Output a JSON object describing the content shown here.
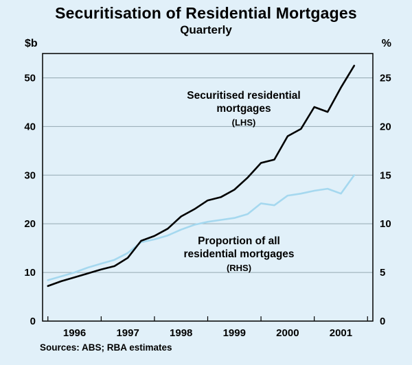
{
  "chart_data": {
    "type": "line",
    "title": "Securitisation of Residential Mortgages",
    "subtitle": "Quarterly",
    "ylabel_left": "$b",
    "ylabel_right": "%",
    "xlim": [
      1995.4,
      2001.6
    ],
    "ylim_left": [
      0,
      55
    ],
    "ylim_right": [
      0,
      27.5
    ],
    "yticks_left": [
      "0",
      "10",
      "20",
      "30",
      "40",
      "50"
    ],
    "ytick_values_left": [
      0,
      10,
      20,
      30,
      40,
      50
    ],
    "yticks_right": [
      "0",
      "5",
      "10",
      "15",
      "20",
      "25"
    ],
    "ytick_values_right": [
      0,
      5,
      10,
      15,
      20,
      25
    ],
    "gridlines_left": [
      10,
      20,
      30,
      40,
      50
    ],
    "xtick_labels": [
      "1996",
      "1997",
      "1998",
      "1999",
      "2000",
      "2001"
    ],
    "xtick_label_positions": [
      1996,
      1997,
      1998,
      1999,
      2000,
      2001
    ],
    "xtick_marks": [
      1995.5,
      1996.5,
      1997.5,
      1998.5,
      1999.5,
      2000.5,
      2001.5
    ],
    "x_start": 1995.5,
    "x_step": 0.25,
    "grid_on": true,
    "legend_position": "inline-annotations",
    "series": [
      {
        "name": "Securitised residential mortgages (LHS)",
        "axis": "left",
        "color": "#000000",
        "values": [
          7.2,
          8.2,
          9.0,
          9.8,
          10.6,
          11.3,
          13.0,
          16.5,
          17.5,
          19.0,
          21.5,
          23.0,
          24.8,
          25.5,
          27.0,
          29.5,
          32.5,
          33.2,
          38.0,
          39.5,
          44.0,
          43.0,
          48.0,
          52.5
        ]
      },
      {
        "name": "Proportion of all residential mortgages (RHS)",
        "axis": "right",
        "color": "#a5d8ef",
        "values": [
          4.2,
          4.6,
          5.0,
          5.5,
          5.9,
          6.3,
          7.0,
          8.1,
          8.4,
          8.8,
          9.4,
          9.9,
          10.2,
          10.4,
          10.6,
          11.0,
          12.1,
          11.9,
          12.9,
          13.1,
          13.4,
          13.6,
          13.1,
          15.0
        ]
      }
    ],
    "annotations": [
      {
        "lines": [
          "Securitised residential",
          "mortgages",
          "(LHS)"
        ]
      },
      {
        "lines": [
          "Proportion of all",
          "residential mortgages",
          "(RHS)"
        ]
      }
    ],
    "source": "Sources: ABS; RBA estimates",
    "colors": {
      "background": "#e1f0f9",
      "grid": "#93a8b2",
      "frame": "#000000",
      "series_lhs": "#000000",
      "series_rhs": "#a5d8ef"
    }
  }
}
